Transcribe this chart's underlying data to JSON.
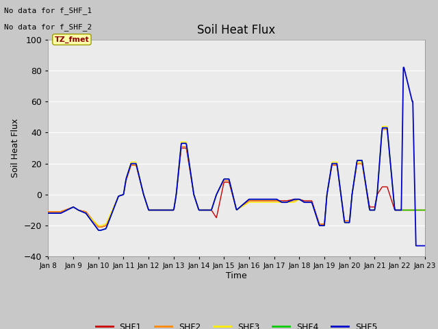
{
  "title": "Soil Heat Flux",
  "ylabel": "Soil Heat Flux",
  "xlabel": "Time",
  "ylim": [
    -40,
    100
  ],
  "no_data_text": [
    "No data for f_SHF_1",
    "No data for f_SHF_2"
  ],
  "tz_label": "TZ_fmet",
  "plot_bg_color": "#ebebeb",
  "fig_bg_color": "#c8c8c8",
  "legend_entries": [
    "SHF1",
    "SHF2",
    "SHF3",
    "SHF4",
    "SHF5"
  ],
  "line_colors": [
    "#cc0000",
    "#ff8800",
    "#ffee00",
    "#00cc00",
    "#0000cc"
  ],
  "x_tick_labels": [
    "Jan 8",
    "Jan 9",
    "Jan 10",
    "Jan 11",
    "Jan 12",
    "Jan 13",
    "Jan 14",
    "Jan 15",
    "Jan 16",
    "Jan 17",
    "Jan 18",
    "Jan 19",
    "Jan 20",
    "Jan 21",
    "Jan 22",
    "Jan 23"
  ],
  "yticks": [
    -40,
    -20,
    0,
    20,
    40,
    60,
    80,
    100
  ],
  "grid_color": "#ffffff",
  "lw": 1.0
}
